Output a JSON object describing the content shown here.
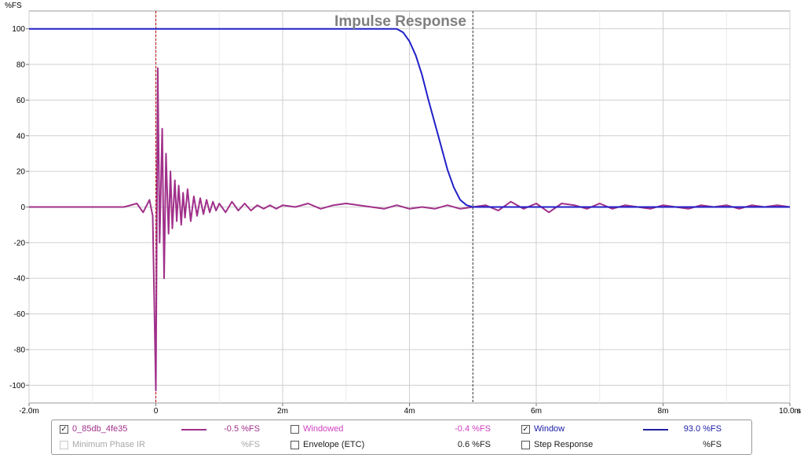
{
  "chart_data": {
    "type": "line",
    "title": "Impulse Response",
    "ylabel": "%FS",
    "xlabel": "",
    "x_unit": "s",
    "xlim": [
      -0.002,
      0.01
    ],
    "ylim": [
      -110,
      110
    ],
    "x_ticks": [
      {
        "v": -0.002,
        "label": "-2.0m"
      },
      {
        "v": 0,
        "label": "0"
      },
      {
        "v": 0.002,
        "label": "2m"
      },
      {
        "v": 0.004,
        "label": "4m"
      },
      {
        "v": 0.006,
        "label": "6m"
      },
      {
        "v": 0.008,
        "label": "8m"
      },
      {
        "v": 0.01,
        "label": "10.0m"
      }
    ],
    "x_minor_ticks": [
      -0.001,
      0.001,
      0.003,
      0.005,
      0.007,
      0.009
    ],
    "y_ticks": [
      100,
      80,
      60,
      40,
      20,
      0,
      -20,
      -40,
      -60,
      -80,
      -100
    ],
    "grid": true,
    "markers": [
      {
        "x": 0,
        "style": "dashed",
        "color": "#c00000"
      },
      {
        "x": 0.005,
        "style": "dashed",
        "color": "#333333"
      }
    ],
    "series": [
      {
        "name": "0_85db_4fe35",
        "color": "#a0308a",
        "x": [
          -0.002,
          -0.0005,
          -0.0003,
          -0.0002,
          -0.0001,
          -5e-05,
          0.0,
          3e-05,
          6e-05,
          0.0001,
          0.00013,
          0.00016,
          0.0002,
          0.00023,
          0.00026,
          0.0003,
          0.00033,
          0.00036,
          0.0004,
          0.00043,
          0.00046,
          0.0005,
          0.00055,
          0.0006,
          0.00065,
          0.0007,
          0.00075,
          0.0008,
          0.00085,
          0.0009,
          0.00095,
          0.001,
          0.0011,
          0.0012,
          0.0013,
          0.0014,
          0.0015,
          0.0016,
          0.0017,
          0.0018,
          0.0019,
          0.002,
          0.0022,
          0.0024,
          0.0026,
          0.0028,
          0.003,
          0.0032,
          0.0034,
          0.0036,
          0.0038,
          0.004,
          0.0042,
          0.0044,
          0.0046,
          0.0048,
          0.005,
          0.0052,
          0.0054,
          0.0056,
          0.0058,
          0.006,
          0.0062,
          0.0064,
          0.0066,
          0.0068,
          0.007,
          0.0072,
          0.0074,
          0.0076,
          0.0078,
          0.008,
          0.0082,
          0.0084,
          0.0086,
          0.0088,
          0.009,
          0.0092,
          0.0094,
          0.0096,
          0.0098,
          0.01
        ],
        "values": [
          0,
          0,
          2,
          -3,
          4,
          -5,
          -103,
          78,
          -20,
          44,
          -40,
          30,
          -15,
          20,
          -12,
          15,
          -8,
          12,
          -10,
          8,
          -6,
          10,
          -8,
          6,
          -5,
          5,
          -4,
          4,
          -3,
          3,
          -2,
          2,
          -3,
          3,
          -2,
          2,
          -2,
          1,
          -1,
          1,
          -1,
          1,
          0,
          2,
          -1,
          1,
          2,
          1,
          0,
          -1,
          1,
          -1,
          0,
          -1,
          1,
          -1,
          0,
          1,
          -2,
          3,
          -1,
          2,
          -3,
          2,
          1,
          -1,
          2,
          -1,
          1,
          0,
          -1,
          1,
          0,
          -1,
          1,
          0,
          1,
          -1,
          1,
          0,
          1,
          0
        ]
      },
      {
        "name": "Window",
        "color": "#2020c8",
        "x": [
          -0.002,
          0.0038,
          0.0039,
          0.004,
          0.0041,
          0.0042,
          0.0043,
          0.0044,
          0.0045,
          0.0046,
          0.0047,
          0.0048,
          0.0049,
          0.005,
          0.01
        ],
        "values": [
          100,
          100,
          98,
          93,
          85,
          74,
          60,
          47,
          34,
          21,
          11,
          4,
          1,
          0,
          0
        ]
      }
    ]
  },
  "legend": {
    "rows": [
      [
        {
          "name": "0_85db_4fe35",
          "checked": true,
          "enabled": true,
          "text_color": "#a0308a",
          "line_color": "#a0308a",
          "value": "-0.5 %FS"
        },
        {
          "name": "Windowed",
          "checked": false,
          "enabled": true,
          "text_color": "#d040c0",
          "line_color": "",
          "value": "-0.4 %FS"
        },
        {
          "name": "Window",
          "checked": true,
          "enabled": true,
          "text_color": "#1a1aa8",
          "line_color": "#2020a0",
          "value": "93.0 %FS"
        }
      ],
      [
        {
          "name": "Minimum Phase IR",
          "checked": false,
          "enabled": false,
          "text_color": "#a8a8a8",
          "line_color": "",
          "value": "%FS"
        },
        {
          "name": "Envelope (ETC)",
          "checked": false,
          "enabled": true,
          "text_color": "#202020",
          "line_color": "",
          "value": "0.6 %FS"
        },
        {
          "name": "Step Response",
          "checked": false,
          "enabled": true,
          "text_color": "#202020",
          "line_color": "",
          "value": "%FS"
        }
      ]
    ]
  }
}
